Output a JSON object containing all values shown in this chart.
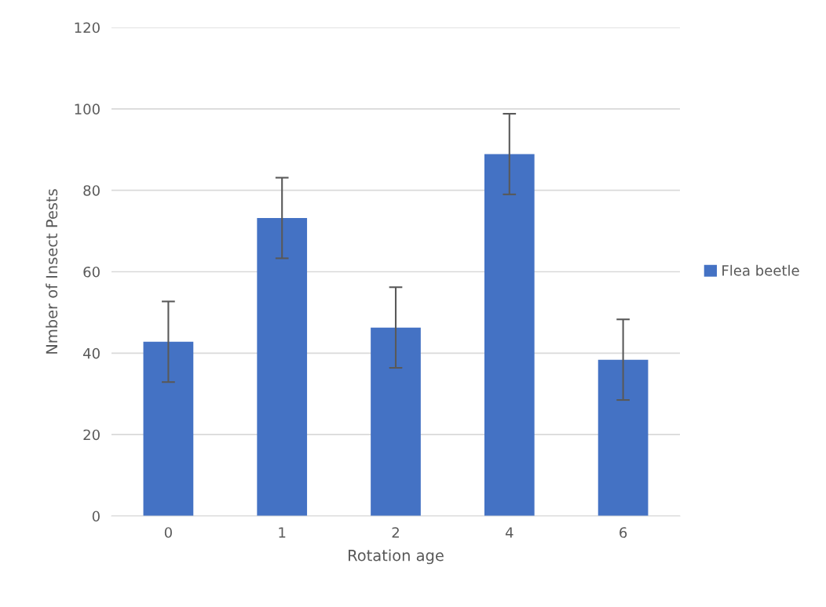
{
  "chart_data": {
    "type": "bar",
    "xlabel": "Rotation age",
    "ylabel": "Nmber of Insect Pests",
    "categories": [
      "0",
      "1",
      "2",
      "4",
      "6"
    ],
    "series": [
      {
        "name": "Flea beetle",
        "color": "#4472c4",
        "values": [
          42.8,
          73.2,
          46.3,
          88.9,
          38.4
        ],
        "errors": [
          9.9,
          9.9,
          9.9,
          9.9,
          9.9
        ]
      }
    ],
    "ylim": [
      0,
      120
    ],
    "yticks": [
      0,
      20,
      40,
      60,
      80,
      100,
      120
    ],
    "grid": "y",
    "legend": "right"
  }
}
